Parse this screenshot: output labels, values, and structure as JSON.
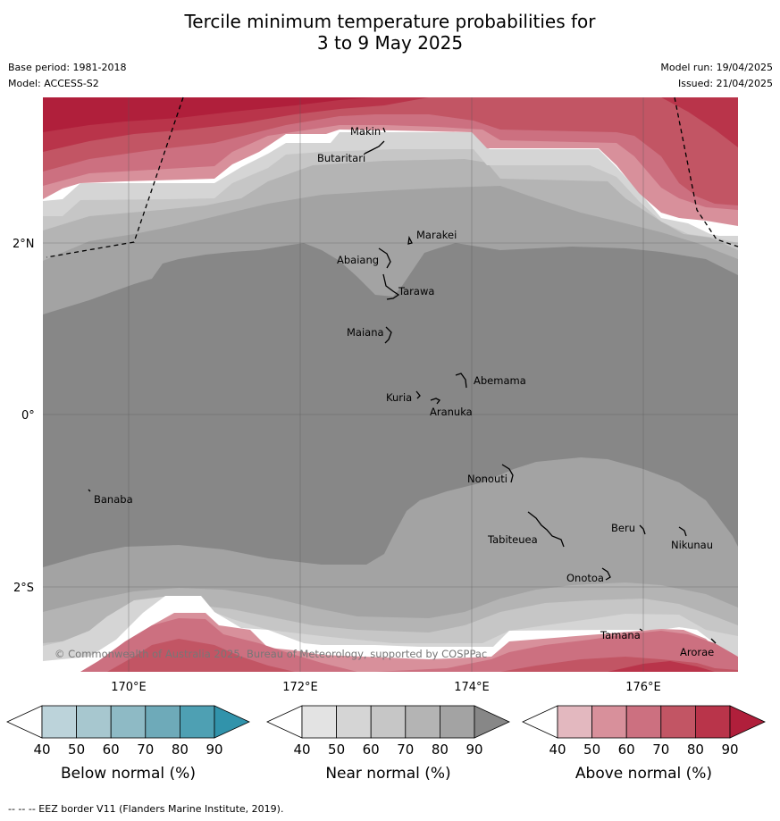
{
  "title_line1": "Tercile minimum temperature probabilities for",
  "title_line2": "3 to 9 May 2025",
  "base_period": "Base period: 1981-2018",
  "model": "Model: ACCESS-S2",
  "model_run": "Model run: 19/04/2025",
  "issued": "Issued: 21/04/2025",
  "copyright": "© Commonwealth of Australia 2025, Bureau of Meteorology, supported by COSPPac",
  "axes": {
    "lat_labels": [
      "2°N",
      "0°",
      "2°S"
    ],
    "lon_labels": [
      "170°E",
      "172°E",
      "174°E",
      "176°E"
    ]
  },
  "places": [
    {
      "name": "Makin"
    },
    {
      "name": "Butaritari"
    },
    {
      "name": "Marakei"
    },
    {
      "name": "Abaiang"
    },
    {
      "name": "Tarawa"
    },
    {
      "name": "Maiana"
    },
    {
      "name": "Abemama"
    },
    {
      "name": "Kuria"
    },
    {
      "name": "Aranuka"
    },
    {
      "name": "Nonouti"
    },
    {
      "name": "Banaba"
    },
    {
      "name": "Beru"
    },
    {
      "name": "Tabiteuea"
    },
    {
      "name": "Nikunau"
    },
    {
      "name": "Onotoa"
    },
    {
      "name": "Tamana"
    },
    {
      "name": "Arorae"
    }
  ],
  "colorbars": [
    {
      "label": "Below normal (%)",
      "ticks": [
        "40",
        "50",
        "60",
        "70",
        "80",
        "90"
      ],
      "colors": [
        "#ffffff",
        "#bcd3da",
        "#a7c7cf",
        "#8ebac5",
        "#6eaab9",
        "#4ea0b3",
        "#3193ab"
      ]
    },
    {
      "label": "Near normal (%)",
      "ticks": [
        "40",
        "50",
        "60",
        "70",
        "80",
        "90"
      ],
      "colors": [
        "#ffffff",
        "#e3e3e3",
        "#d5d5d5",
        "#c6c6c6",
        "#b4b4b4",
        "#a3a3a3",
        "#878787"
      ]
    },
    {
      "label": "Above normal (%)",
      "ticks": [
        "40",
        "50",
        "60",
        "70",
        "80",
        "90"
      ],
      "colors": [
        "#ffffff",
        "#e3b8bf",
        "#d8909b",
        "#cc7080",
        "#c25564",
        "#b9344a",
        "#b01f3b"
      ]
    }
  ],
  "footer": "-- -- -- EEZ border V11 (Flanders Marine Institute, 2019)."
}
